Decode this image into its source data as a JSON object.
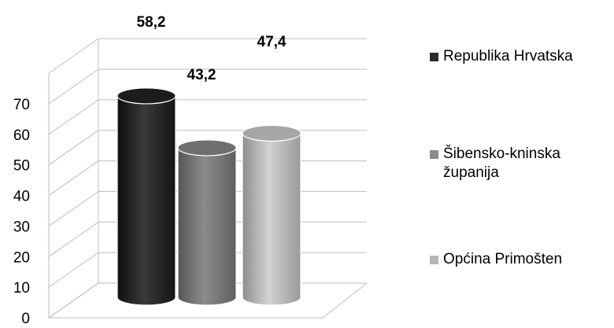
{
  "chart_data": {
    "type": "bar",
    "style": "3d-cylinder",
    "categories": [
      "Republika Hrvatska",
      "Šibensko-kninska županija",
      "Općina Primošten"
    ],
    "values": [
      58.2,
      43.2,
      47.4
    ],
    "value_labels": [
      "58,2",
      "43,2",
      "47,4"
    ],
    "colors": [
      "#2b2b2b",
      "#7f7f7f",
      "#b5b5b5"
    ],
    "title": "",
    "xlabel": "",
    "ylabel": "",
    "ylim": [
      0,
      70
    ],
    "yticks": [
      "0",
      "10",
      "20",
      "30",
      "40",
      "50",
      "60",
      "70"
    ],
    "grid": true,
    "legend_position": "right",
    "legend": [
      {
        "label": "Republika Hrvatska",
        "color": "#2b2b2b"
      },
      {
        "label": "Šibensko-kninska županija",
        "color": "#8a8a8a"
      },
      {
        "label": "Općina Primošten",
        "color": "#b5b5b5"
      }
    ]
  }
}
